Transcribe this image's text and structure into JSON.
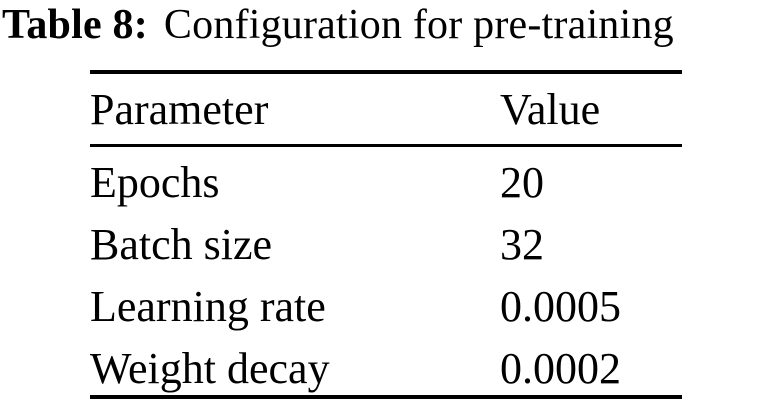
{
  "caption": {
    "label": "Table 8:",
    "text": "Configuration for pre-training"
  },
  "table": {
    "columns": {
      "parameter": "Parameter",
      "value": "Value"
    },
    "rows": [
      {
        "parameter": "Epochs",
        "value": "20"
      },
      {
        "parameter": "Batch size",
        "value": "32"
      },
      {
        "parameter": "Learning rate",
        "value": "0.0005"
      },
      {
        "parameter": "Weight decay",
        "value": "0.0002"
      }
    ]
  },
  "colors": {
    "text": "#000000",
    "background": "#ffffff",
    "rule": "#000000"
  }
}
